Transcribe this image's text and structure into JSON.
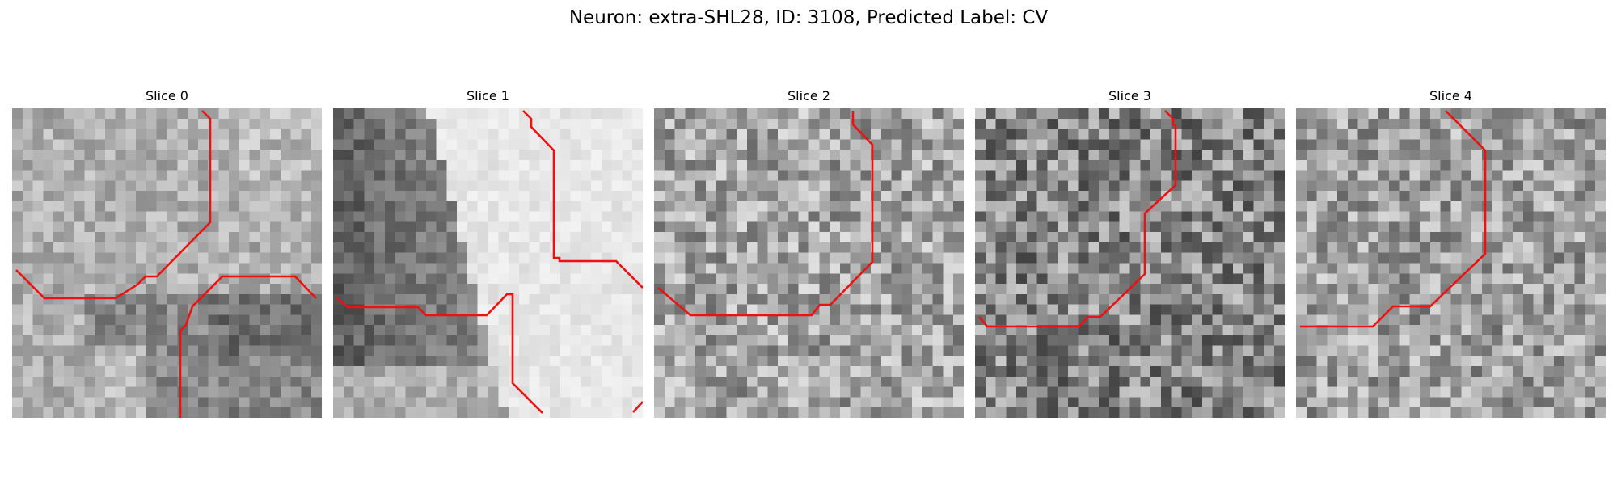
{
  "figure": {
    "title": "Neuron: extra-SHL28, ID: 3108, Predicted Label: CV",
    "contour_color": "#ee1111"
  },
  "panels": [
    {
      "title": "Slice 0"
    },
    {
      "title": "Slice 1"
    },
    {
      "title": "Slice 2"
    },
    {
      "title": "Slice 3"
    },
    {
      "title": "Slice 4"
    }
  ]
}
